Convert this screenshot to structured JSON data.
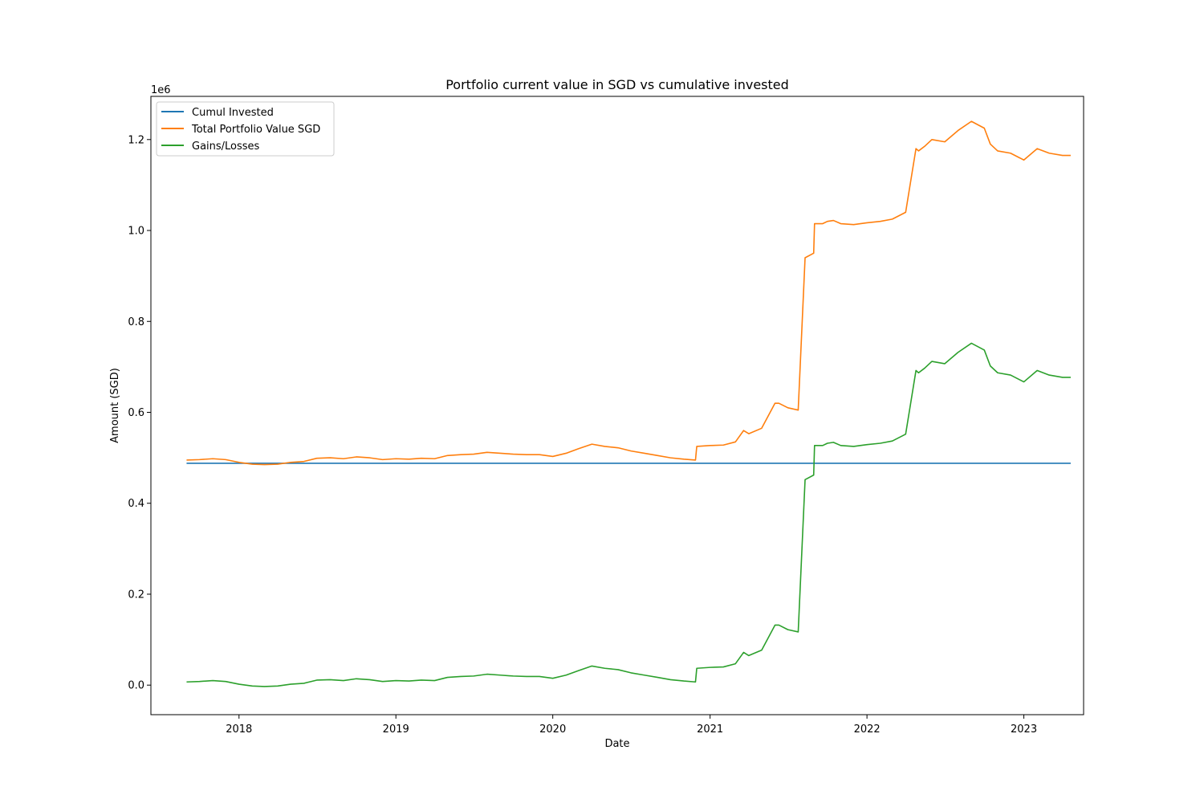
{
  "chart_data": {
    "type": "line",
    "title": "Portfolio current value in SGD vs cumulative invested",
    "xlabel": "Date",
    "ylabel": "Amount (SGD)",
    "y_offset_label": "1e6",
    "xlim": [
      "2017-06-10",
      "2023-05-20"
    ],
    "ylim": [
      -0.065,
      1.295
    ],
    "x_ticks": [
      "2018-01-01",
      "2019-01-01",
      "2020-01-01",
      "2021-01-01",
      "2022-01-01",
      "2023-01-01"
    ],
    "x_tick_labels": [
      "2018",
      "2019",
      "2020",
      "2021",
      "2022",
      "2023"
    ],
    "y_ticks": [
      0.0,
      0.2,
      0.4,
      0.6,
      0.8,
      1.0,
      1.2
    ],
    "y_tick_labels": [
      "0.0",
      "0.2",
      "0.4",
      "0.6",
      "0.8",
      "1.0",
      "1.2"
    ],
    "legend_position": "top-left",
    "grid": false,
    "series": [
      {
        "name": "Cumul Invested",
        "color": "#1f77b4",
        "x": [
          "2017-09-01",
          "2023-04-20"
        ],
        "y": [
          0.488,
          0.488
        ]
      },
      {
        "name": "Total Portfolio Value SGD",
        "color": "#ff7f0e",
        "x": [
          "2017-09-01",
          "2017-10-01",
          "2017-11-01",
          "2017-12-01",
          "2018-01-01",
          "2018-02-01",
          "2018-03-01",
          "2018-04-01",
          "2018-05-01",
          "2018-06-01",
          "2018-07-01",
          "2018-08-01",
          "2018-09-01",
          "2018-10-01",
          "2018-11-01",
          "2018-12-01",
          "2019-01-01",
          "2019-02-01",
          "2019-03-01",
          "2019-04-01",
          "2019-05-01",
          "2019-06-01",
          "2019-07-01",
          "2019-08-01",
          "2019-09-01",
          "2019-10-01",
          "2019-11-01",
          "2019-12-01",
          "2020-01-01",
          "2020-02-01",
          "2020-03-01",
          "2020-04-01",
          "2020-05-01",
          "2020-06-01",
          "2020-07-01",
          "2020-08-01",
          "2020-09-01",
          "2020-10-01",
          "2020-11-01",
          "2020-11-28",
          "2020-12-01",
          "2021-01-01",
          "2021-02-01",
          "2021-03-01",
          "2021-03-20",
          "2021-04-01",
          "2021-05-01",
          "2021-06-01",
          "2021-06-10",
          "2021-07-01",
          "2021-07-25",
          "2021-08-10",
          "2021-08-30",
          "2021-09-01",
          "2021-09-20",
          "2021-10-01",
          "2021-10-15",
          "2021-11-01",
          "2021-12-01",
          "2022-01-01",
          "2022-02-01",
          "2022-03-01",
          "2022-04-01",
          "2022-04-25",
          "2022-05-01",
          "2022-05-15",
          "2022-06-01",
          "2022-07-01",
          "2022-08-01",
          "2022-09-01",
          "2022-10-01",
          "2022-10-15",
          "2022-11-01",
          "2022-12-01",
          "2023-01-01",
          "2023-02-01",
          "2023-03-01",
          "2023-04-01",
          "2023-04-20"
        ],
        "y": [
          0.495,
          0.496,
          0.498,
          0.496,
          0.49,
          0.486,
          0.485,
          0.486,
          0.49,
          0.492,
          0.499,
          0.5,
          0.498,
          0.502,
          0.5,
          0.496,
          0.498,
          0.497,
          0.499,
          0.498,
          0.505,
          0.507,
          0.508,
          0.512,
          0.51,
          0.508,
          0.507,
          0.507,
          0.503,
          0.51,
          0.52,
          0.53,
          0.525,
          0.522,
          0.515,
          0.51,
          0.505,
          0.5,
          0.497,
          0.495,
          0.525,
          0.527,
          0.528,
          0.535,
          0.56,
          0.553,
          0.565,
          0.62,
          0.62,
          0.61,
          0.605,
          0.94,
          0.95,
          1.015,
          1.015,
          1.02,
          1.022,
          1.015,
          1.013,
          1.017,
          1.02,
          1.025,
          1.04,
          1.18,
          1.175,
          1.185,
          1.2,
          1.195,
          1.22,
          1.24,
          1.225,
          1.19,
          1.175,
          1.17,
          1.155,
          1.18,
          1.17,
          1.165,
          1.165
        ]
      },
      {
        "name": "Gains/Losses",
        "color": "#2ca02c",
        "x": [
          "2017-09-01",
          "2017-10-01",
          "2017-11-01",
          "2017-12-01",
          "2018-01-01",
          "2018-02-01",
          "2018-03-01",
          "2018-04-01",
          "2018-05-01",
          "2018-06-01",
          "2018-07-01",
          "2018-08-01",
          "2018-09-01",
          "2018-10-01",
          "2018-11-01",
          "2018-12-01",
          "2019-01-01",
          "2019-02-01",
          "2019-03-01",
          "2019-04-01",
          "2019-05-01",
          "2019-06-01",
          "2019-07-01",
          "2019-08-01",
          "2019-09-01",
          "2019-10-01",
          "2019-11-01",
          "2019-12-01",
          "2020-01-01",
          "2020-02-01",
          "2020-03-01",
          "2020-04-01",
          "2020-05-01",
          "2020-06-01",
          "2020-07-01",
          "2020-08-01",
          "2020-09-01",
          "2020-10-01",
          "2020-11-01",
          "2020-11-28",
          "2020-12-01",
          "2021-01-01",
          "2021-02-01",
          "2021-03-01",
          "2021-03-20",
          "2021-04-01",
          "2021-05-01",
          "2021-06-01",
          "2021-06-10",
          "2021-07-01",
          "2021-07-25",
          "2021-08-10",
          "2021-08-30",
          "2021-09-01",
          "2021-09-20",
          "2021-10-01",
          "2021-10-15",
          "2021-11-01",
          "2021-12-01",
          "2022-01-01",
          "2022-02-01",
          "2022-03-01",
          "2022-04-01",
          "2022-04-25",
          "2022-05-01",
          "2022-05-15",
          "2022-06-01",
          "2022-07-01",
          "2022-08-01",
          "2022-09-01",
          "2022-10-01",
          "2022-10-15",
          "2022-11-01",
          "2022-12-01",
          "2023-01-01",
          "2023-02-01",
          "2023-03-01",
          "2023-04-01",
          "2023-04-20"
        ],
        "y": [
          0.007,
          0.008,
          0.01,
          0.008,
          0.002,
          -0.002,
          -0.003,
          -0.002,
          0.002,
          0.004,
          0.011,
          0.012,
          0.01,
          0.014,
          0.012,
          0.008,
          0.01,
          0.009,
          0.011,
          0.01,
          0.017,
          0.019,
          0.02,
          0.024,
          0.022,
          0.02,
          0.019,
          0.019,
          0.015,
          0.022,
          0.032,
          0.042,
          0.037,
          0.034,
          0.027,
          0.022,
          0.017,
          0.012,
          0.009,
          0.007,
          0.037,
          0.039,
          0.04,
          0.047,
          0.072,
          0.065,
          0.077,
          0.132,
          0.132,
          0.122,
          0.117,
          0.452,
          0.462,
          0.527,
          0.527,
          0.532,
          0.534,
          0.527,
          0.525,
          0.529,
          0.532,
          0.537,
          0.552,
          0.692,
          0.687,
          0.697,
          0.712,
          0.707,
          0.732,
          0.752,
          0.737,
          0.702,
          0.687,
          0.682,
          0.667,
          0.692,
          0.682,
          0.677,
          0.677
        ]
      }
    ]
  }
}
